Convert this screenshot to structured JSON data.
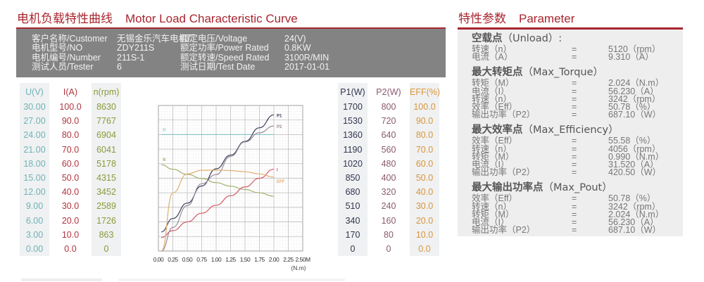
{
  "left_section": {
    "title_cn": "电机负载特性曲线",
    "title_en": "Motor Load Characteristic Curve"
  },
  "right_section": {
    "title_cn": "特性参数",
    "title_en": "Parameter"
  },
  "info": [
    {
      "label": "客户名称/Customer",
      "value": "无锡金乐汽车电机厂",
      "label2": "额定电压/Voltage",
      "value2": "24(V)"
    },
    {
      "label": "电机型号/NO",
      "value": "ZDY211S",
      "label2": "额定功率/Power Rated",
      "value2": "0.8KW"
    },
    {
      "label": "电机编号/Number",
      "value": "211S-1",
      "label2": "额定转速/Speed Rated",
      "value2": "3100R/MIN"
    },
    {
      "label": "测试人员/Tester",
      "value": "6",
      "label2": "测试日期/Test Date",
      "value2": "2017-01-01"
    }
  ],
  "scales_left": [
    {
      "header": "U(V)",
      "color": "#6fb3b8",
      "values": [
        "30.00",
        "27.00",
        "24.00",
        "21.00",
        "18.00",
        "15.00",
        "12.00",
        "9.00",
        "6.00",
        "3.00",
        "0.00"
      ]
    },
    {
      "header": "I(A)",
      "color": "#b0353f",
      "values": [
        "100.0",
        "90.0",
        "80.0",
        "70.0",
        "60.0",
        "50.0",
        "40.0",
        "30.0",
        "20.0",
        "10.0",
        "0.0"
      ]
    },
    {
      "header": "n(rpm)",
      "color": "#8a9a3a",
      "values": [
        "8630",
        "7767",
        "6904",
        "6041",
        "5178",
        "4315",
        "3452",
        "2589",
        "1726",
        "863",
        "0"
      ]
    }
  ],
  "scales_right": [
    {
      "header": "P1(W)",
      "color": "#2f3550",
      "values": [
        "1700",
        "1530",
        "1360",
        "1190",
        "1020",
        "850",
        "680",
        "510",
        "340",
        "170",
        "0"
      ]
    },
    {
      "header": "P2(W)",
      "color": "#8a5a6e",
      "values": [
        "800",
        "720",
        "640",
        "560",
        "480",
        "400",
        "320",
        "240",
        "160",
        "80",
        "0"
      ]
    },
    {
      "header": "EFF(%)",
      "color": "#d9953a",
      "values": [
        "100.0",
        "90.0",
        "80.0",
        "70.0",
        "60.0",
        "50.0",
        "40.0",
        "30.0",
        "20.0",
        "10.0",
        "0.0"
      ]
    }
  ],
  "chart_data": {
    "type": "line",
    "title": "Motor Load Characteristic Curve",
    "xlabel": "(N.m)",
    "x_ticks": [
      "0.00",
      "0.25",
      "0.50",
      "0.75",
      "1.00",
      "1.25",
      "1.50",
      "1.75",
      "2.00",
      "2.25",
      "2.50M"
    ],
    "xlim": [
      0,
      2.5
    ],
    "grid": true,
    "x": [
      0.05,
      0.25,
      0.5,
      0.75,
      1.0,
      1.25,
      1.5,
      1.75,
      2.0
    ],
    "series": [
      {
        "name": "U",
        "axis": "U(V)",
        "color": "#8ec5c8",
        "values": [
          24,
          24,
          24,
          24,
          24,
          24,
          24,
          24,
          24
        ]
      },
      {
        "name": "N",
        "axis": "n(rpm)",
        "color": "#9fb06a",
        "values": [
          5120,
          4850,
          4550,
          4300,
          4056,
          3850,
          3650,
          3450,
          3242
        ]
      },
      {
        "name": "I",
        "axis": "I(A)",
        "color": "#d25a64",
        "values": [
          9.3,
          14,
          20,
          26,
          31.5,
          38,
          44,
          50,
          56.2
        ]
      },
      {
        "name": "P1",
        "axis": "P1(W)",
        "color": "#3a3f5c",
        "values": [
          223,
          380,
          560,
          760,
          960,
          1120,
          1280,
          1440,
          1590
        ]
      },
      {
        "name": "P2",
        "axis": "P2(W)",
        "color": "#9a8a98",
        "values": [
          0,
          130,
          250,
          370,
          420,
          520,
          600,
          650,
          687
        ]
      },
      {
        "name": "EFF",
        "axis": "EFF(%)",
        "color": "#e0b070",
        "values": [
          0,
          40,
          53,
          55.5,
          55.58,
          55.3,
          54.5,
          53,
          50.78
        ]
      }
    ]
  },
  "parameters": [
    {
      "title_cn": "空载点",
      "title_en": "（Unload）:",
      "rows": [
        {
          "label": "转速（n）",
          "value": "5120（rpm）"
        },
        {
          "label": "电流（A）",
          "value": "9.310（A）"
        }
      ]
    },
    {
      "title_cn": "最大转矩点",
      "title_en": "（Max_Torque）",
      "rows": [
        {
          "label": "转矩（M）",
          "value": "2.024（N.m）"
        },
        {
          "label": "电流（I）",
          "value": "56.230（A）"
        },
        {
          "label": "转速（n）",
          "value": "3242（rpm）"
        },
        {
          "label": "效率（Eff）",
          "value": "50.78（%）"
        },
        {
          "label": "输出功率（P2）",
          "value": "687.10（W）"
        }
      ]
    },
    {
      "title_cn": "最大效率点",
      "title_en": "（Max_Efficiency）",
      "rows": [
        {
          "label": "效率（Eff）",
          "value": "55.58（%）"
        },
        {
          "label": "转速（n）",
          "value": "4056（rpm）"
        },
        {
          "label": "转矩（M）",
          "value": "0.990（N.m）"
        },
        {
          "label": "电流（I）",
          "value": "31.520（A）"
        },
        {
          "label": "输出功率（P2）",
          "value": "420.50（W）"
        }
      ]
    },
    {
      "title_cn": "最大输出功率点",
      "title_en": "（Max_Pout）",
      "rows": [
        {
          "label": "效率（Eff）",
          "value": "50.78（%）"
        },
        {
          "label": "转速（n）",
          "value": "3242（rpm）"
        },
        {
          "label": "转矩（M）",
          "value": "2.024（N.m）"
        },
        {
          "label": "电流（I）",
          "value": "56.230（A）"
        },
        {
          "label": "输出功率（P2）",
          "value": "687.10（W）"
        }
      ]
    }
  ],
  "equals_sign": "="
}
